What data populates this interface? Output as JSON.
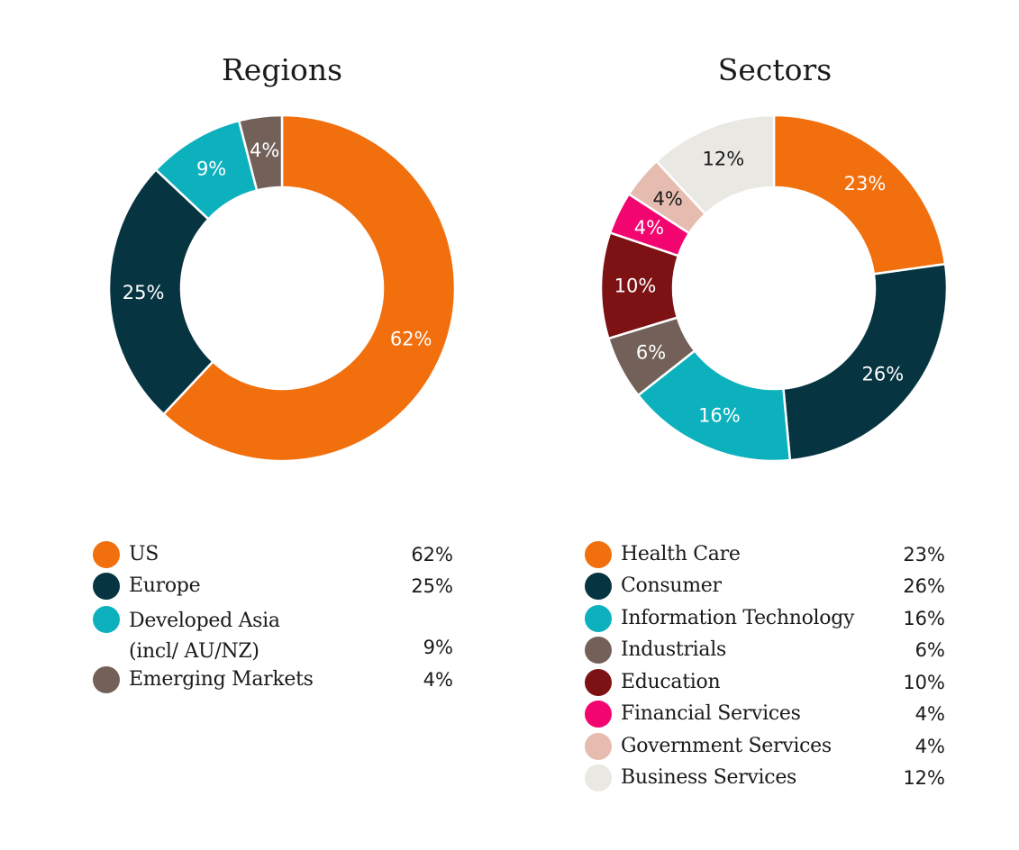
{
  "chart_data": [
    {
      "type": "pie",
      "variant": "donut",
      "title": "Regions",
      "start": "top",
      "direction": "clockwise",
      "categories": [
        "US",
        "Europe",
        "Developed Asia (incl/ AU/NZ)",
        "Emerging Markets"
      ],
      "values": [
        62,
        25,
        9,
        4
      ],
      "slice_labels": [
        "62%",
        "25%",
        "9%",
        "4%"
      ],
      "colors": [
        "#f26f0d",
        "#063440",
        "#0db1bd",
        "#736159"
      ],
      "label_colors": [
        "#ffffff",
        "#ffffff",
        "#ffffff",
        "#ffffff"
      ],
      "legend": {
        "placement": "bottom",
        "items": [
          {
            "label": "US",
            "value": "62%",
            "color": "#f26f0d"
          },
          {
            "label": "Europe",
            "value": "25%",
            "color": "#063440"
          },
          {
            "label": "Developed Asia",
            "label2": "(incl/ AU/NZ)",
            "value": "9%",
            "color": "#0db1bd"
          },
          {
            "label": "Emerging Markets",
            "value": "4%",
            "color": "#736159"
          }
        ]
      }
    },
    {
      "type": "pie",
      "variant": "donut",
      "title": "Sectors",
      "start": "top",
      "direction": "clockwise",
      "categories": [
        "Health Care",
        "Consumer",
        "Information Technology",
        "Industrials",
        "Education",
        "Financial Services",
        "Government Services",
        "Business Services"
      ],
      "values": [
        23,
        26,
        16,
        6,
        10,
        4,
        4,
        12
      ],
      "slice_labels": [
        "23%",
        "26%",
        "16%",
        "6%",
        "10%",
        "4%",
        "4%",
        "12%"
      ],
      "colors": [
        "#f26f0d",
        "#063440",
        "#0db1bd",
        "#736159",
        "#7c1214",
        "#f3056f",
        "#e7bcb0",
        "#e9e8e3"
      ],
      "label_colors": [
        "#ffffff",
        "#ffffff",
        "#ffffff",
        "#ffffff",
        "#ffffff",
        "#ffffff",
        "#1a1a1a",
        "#1a1a1a"
      ],
      "legend": {
        "placement": "bottom",
        "items": [
          {
            "label": "Health Care",
            "value": "23%",
            "color": "#f26f0d"
          },
          {
            "label": "Consumer",
            "value": "26%",
            "color": "#063440"
          },
          {
            "label": "Information Technology",
            "value": "16%",
            "color": "#0db1bd"
          },
          {
            "label": "Industrials",
            "value": "6%",
            "color": "#736159"
          },
          {
            "label": "Education",
            "value": "10%",
            "color": "#7c1214"
          },
          {
            "label": "Financial Services",
            "value": "4%",
            "color": "#f3056f"
          },
          {
            "label": "Government Services",
            "value": "4%",
            "color": "#e7bcb0"
          },
          {
            "label": "Business Services",
            "value": "12%",
            "color": "#e9e8e3"
          }
        ]
      }
    }
  ]
}
